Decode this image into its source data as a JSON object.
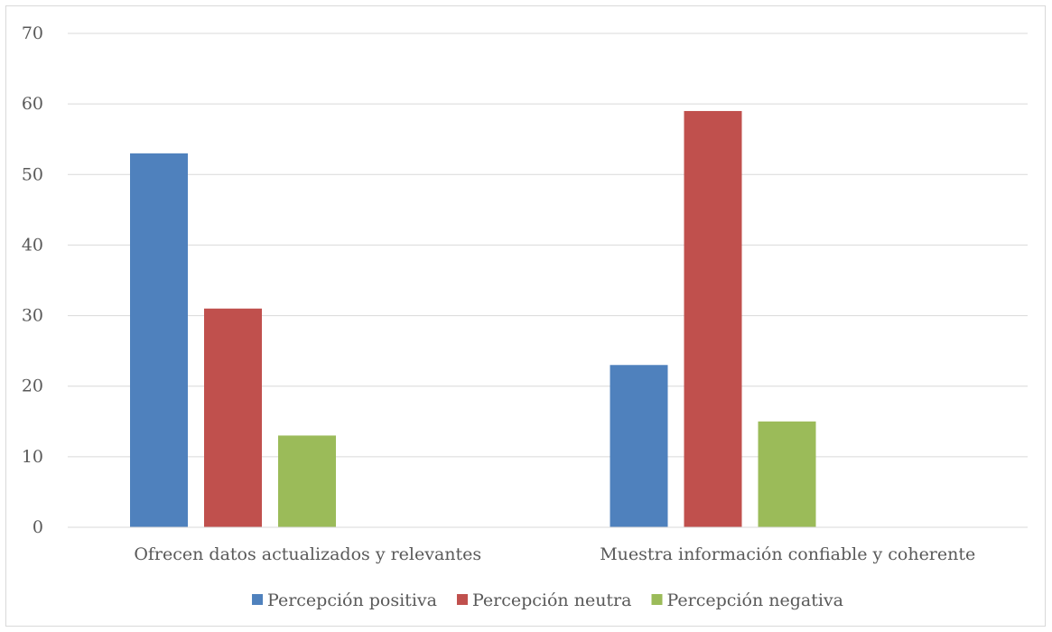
{
  "chart_data": {
    "type": "bar",
    "categories": [
      "Ofrecen datos actualizados y relevantes",
      "Muestra información confiable y coherente"
    ],
    "series": [
      {
        "name": "Percepción positiva",
        "color": "#4f81bd",
        "values": [
          53,
          23
        ]
      },
      {
        "name": "Percepción neutra",
        "color": "#c0504d",
        "values": [
          31,
          59
        ]
      },
      {
        "name": "Percepción negativa",
        "color": "#9bbb59",
        "values": [
          13,
          15
        ]
      }
    ],
    "ylim": [
      0,
      70
    ],
    "yticks": [
      0,
      10,
      20,
      30,
      40,
      50,
      60,
      70
    ],
    "grid": true,
    "legend_position": "bottom"
  }
}
